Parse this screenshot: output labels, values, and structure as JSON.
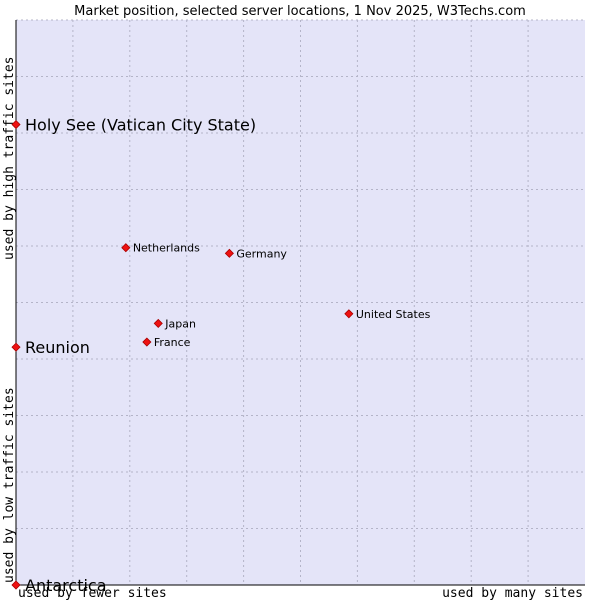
{
  "chart_data": {
    "type": "scatter",
    "title": "Market position, selected server locations, 1 Nov 2025, W3Techs.com",
    "xlabel_low": "used by fewer sites",
    "xlabel_high": "used by many sites",
    "ylabel_low": "used by low traffic sites",
    "ylabel_high": "used by high traffic sites",
    "xlim": [
      0,
      100
    ],
    "ylim": [
      0,
      100
    ],
    "grid": true,
    "colors": {
      "plot_background": "#e4e4f8",
      "grid": "#b4b4c8",
      "axis": "#000000",
      "marker_fill": "#ee1111",
      "marker_stroke": "#aa0000"
    },
    "points": [
      {
        "label": "Holy See (Vatican City State)",
        "x": 0,
        "y": 81.5,
        "emphasis": true
      },
      {
        "label": "Netherlands",
        "x": 19.3,
        "y": 59.7,
        "emphasis": false
      },
      {
        "label": "Germany",
        "x": 37.5,
        "y": 58.7,
        "emphasis": false
      },
      {
        "label": "United States",
        "x": 58.5,
        "y": 48.0,
        "emphasis": false
      },
      {
        "label": "Japan",
        "x": 25.0,
        "y": 46.3,
        "emphasis": false
      },
      {
        "label": "France",
        "x": 23.0,
        "y": 43.0,
        "emphasis": false
      },
      {
        "label": "Reunion",
        "x": 0,
        "y": 42.1,
        "emphasis": true
      },
      {
        "label": "Antarctica",
        "x": 0,
        "y": 0,
        "emphasis": true
      }
    ]
  }
}
